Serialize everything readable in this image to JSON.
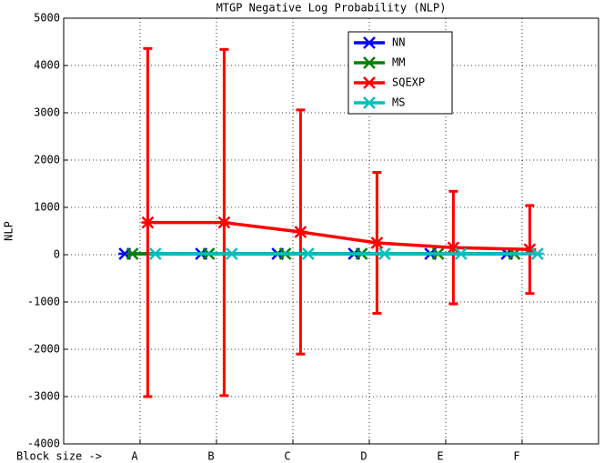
{
  "chart_data": {
    "type": "line",
    "title": "MTGP Negative Log Probability (NLP)",
    "y_label": "NLP",
    "xlim": [
      0,
      7
    ],
    "xticks": [
      {
        "value": 0,
        "label": "Block size ->"
      },
      {
        "value": 1,
        "label": "A"
      },
      {
        "value": 2,
        "label": "B"
      },
      {
        "value": 3,
        "label": "C"
      },
      {
        "value": 4,
        "label": "D"
      },
      {
        "value": 5,
        "label": "E"
      },
      {
        "value": 6,
        "label": "F"
      }
    ],
    "ylim": [
      -4000,
      5000
    ],
    "yticks": [
      -4000,
      -3000,
      -2000,
      -1000,
      0,
      1000,
      2000,
      3000,
      4000,
      5000
    ],
    "grid": true,
    "legend": "top-right",
    "series": [
      {
        "name": "NN",
        "color": "#0000ff",
        "x": [
          0.8,
          1.8,
          2.8,
          3.8,
          4.8,
          5.8
        ],
        "values": [
          20,
          20,
          20,
          20,
          20,
          20
        ]
      },
      {
        "name": "MM",
        "color": "#008000",
        "x": [
          0.9,
          1.9,
          2.9,
          3.9,
          4.9,
          5.9
        ],
        "values": [
          20,
          20,
          20,
          20,
          20,
          20
        ]
      },
      {
        "name": "SQEXP",
        "color": "#ff0000",
        "x": [
          1.1,
          2.1,
          3.1,
          4.1,
          5.1,
          6.1
        ],
        "values": [
          680,
          680,
          480,
          250,
          150,
          110
        ],
        "errors": [
          3680,
          3660,
          2580,
          1490,
          1190,
          930
        ]
      },
      {
        "name": "MS",
        "color": "#00bfbf",
        "x": [
          1.2,
          2.2,
          3.2,
          4.2,
          5.2,
          6.2
        ],
        "values": [
          20,
          20,
          20,
          20,
          20,
          20
        ]
      }
    ]
  }
}
